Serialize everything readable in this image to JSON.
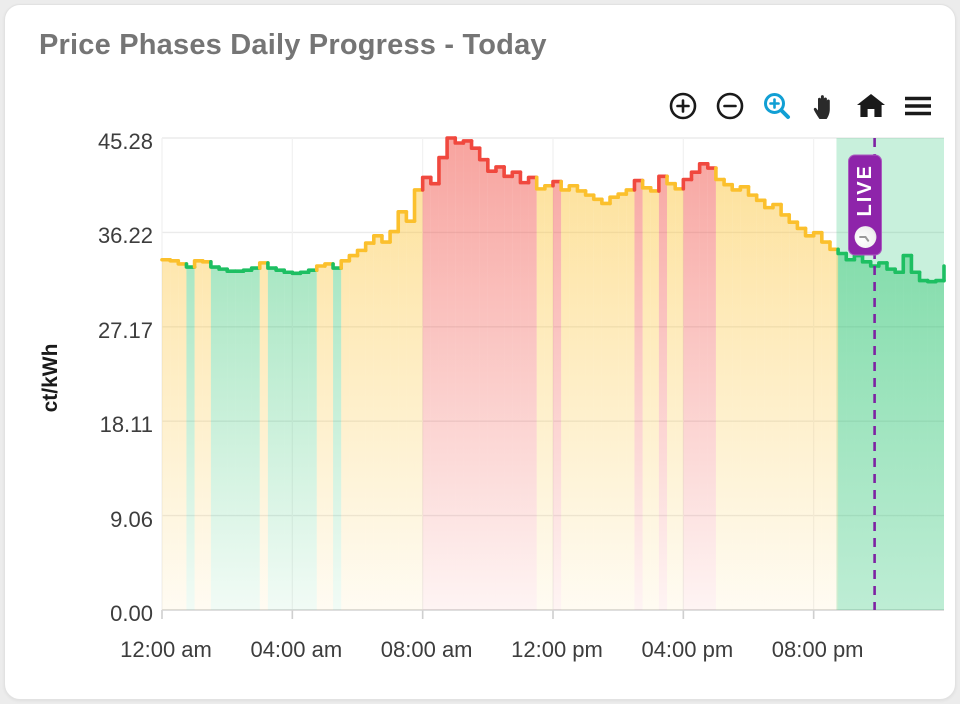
{
  "header": {
    "title": "Price Phases Daily Progress - Today"
  },
  "toolbar": {
    "icon_color": "#1a1a1a",
    "active_tool_color": "#119fd4",
    "buttons": [
      {
        "name": "zoom-in"
      },
      {
        "name": "zoom-out"
      },
      {
        "name": "box-zoom",
        "active": true
      },
      {
        "name": "pan"
      },
      {
        "name": "reset-home"
      },
      {
        "name": "menu"
      }
    ]
  },
  "live_marker": {
    "label": "LIVE",
    "icon": "clock-icon",
    "badge_color": "#8e24aa",
    "line_color": "#7e22a3",
    "time_hour": 21.87
  },
  "chart_data": {
    "type": "line",
    "subtype": "step-phase-colored",
    "title": "Price Phases Daily Progress - Today",
    "xlabel": "",
    "ylabel": "ct/kWh",
    "ylim": [
      0,
      45.28
    ],
    "xlim_hours": [
      0,
      24
    ],
    "grid": true,
    "legend_position": "none",
    "yticks": [
      {
        "v": 45.28,
        "label": "45.28"
      },
      {
        "v": 36.22,
        "label": "36.22"
      },
      {
        "v": 27.17,
        "label": "27.17"
      },
      {
        "v": 18.11,
        "label": "18.11"
      },
      {
        "v": 9.06,
        "label": "9.06"
      },
      {
        "v": 0.0,
        "label": "0.00"
      }
    ],
    "xticks": [
      {
        "h": 0,
        "label": "12:00 am"
      },
      {
        "h": 4,
        "label": "04:00 am"
      },
      {
        "h": 8,
        "label": "08:00 am"
      },
      {
        "h": 12,
        "label": "12:00 pm"
      },
      {
        "h": 16,
        "label": "04:00 pm"
      },
      {
        "h": 20,
        "label": "08:00 pm"
      }
    ],
    "phase_colors": {
      "G": "#1dbf62",
      "Y": "#fbc02d",
      "R": "#f0483e"
    },
    "current_phase_band": {
      "start_hour": 20.7,
      "end_hour": 24,
      "color": "#35c77f",
      "opacity": 0.27
    },
    "end_value": 33.0,
    "series": [
      {
        "t": "00:00",
        "v": 33.6,
        "p": "Y"
      },
      {
        "t": "00:15",
        "v": 33.5,
        "p": "Y"
      },
      {
        "t": "00:30",
        "v": 33.2,
        "p": "Y"
      },
      {
        "t": "00:45",
        "v": 32.9,
        "p": "G"
      },
      {
        "t": "01:00",
        "v": 33.5,
        "p": "Y"
      },
      {
        "t": "01:15",
        "v": 33.4,
        "p": "Y"
      },
      {
        "t": "01:30",
        "v": 32.9,
        "p": "G"
      },
      {
        "t": "01:45",
        "v": 32.7,
        "p": "G"
      },
      {
        "t": "02:00",
        "v": 32.5,
        "p": "G"
      },
      {
        "t": "02:15",
        "v": 32.5,
        "p": "G"
      },
      {
        "t": "02:30",
        "v": 32.6,
        "p": "G"
      },
      {
        "t": "02:45",
        "v": 32.8,
        "p": "G"
      },
      {
        "t": "03:00",
        "v": 33.3,
        "p": "Y"
      },
      {
        "t": "03:15",
        "v": 32.8,
        "p": "G"
      },
      {
        "t": "03:30",
        "v": 32.6,
        "p": "G"
      },
      {
        "t": "03:45",
        "v": 32.4,
        "p": "G"
      },
      {
        "t": "04:00",
        "v": 32.3,
        "p": "G"
      },
      {
        "t": "04:15",
        "v": 32.4,
        "p": "G"
      },
      {
        "t": "04:30",
        "v": 32.6,
        "p": "G"
      },
      {
        "t": "04:45",
        "v": 33.0,
        "p": "Y"
      },
      {
        "t": "05:00",
        "v": 33.2,
        "p": "Y"
      },
      {
        "t": "05:15",
        "v": 32.8,
        "p": "G"
      },
      {
        "t": "05:30",
        "v": 33.5,
        "p": "Y"
      },
      {
        "t": "05:45",
        "v": 34.0,
        "p": "Y"
      },
      {
        "t": "06:00",
        "v": 34.5,
        "p": "Y"
      },
      {
        "t": "06:15",
        "v": 35.2,
        "p": "Y"
      },
      {
        "t": "06:30",
        "v": 35.9,
        "p": "Y"
      },
      {
        "t": "06:45",
        "v": 35.3,
        "p": "Y"
      },
      {
        "t": "07:00",
        "v": 36.3,
        "p": "Y"
      },
      {
        "t": "07:15",
        "v": 38.2,
        "p": "Y"
      },
      {
        "t": "07:30",
        "v": 37.3,
        "p": "Y"
      },
      {
        "t": "07:45",
        "v": 40.3,
        "p": "Y"
      },
      {
        "t": "08:00",
        "v": 41.5,
        "p": "R"
      },
      {
        "t": "08:15",
        "v": 40.9,
        "p": "R"
      },
      {
        "t": "08:30",
        "v": 43.4,
        "p": "R"
      },
      {
        "t": "08:45",
        "v": 45.28,
        "p": "R"
      },
      {
        "t": "09:00",
        "v": 44.8,
        "p": "R"
      },
      {
        "t": "09:15",
        "v": 45.0,
        "p": "R"
      },
      {
        "t": "09:30",
        "v": 44.3,
        "p": "R"
      },
      {
        "t": "09:45",
        "v": 43.2,
        "p": "R"
      },
      {
        "t": "10:00",
        "v": 42.1,
        "p": "R"
      },
      {
        "t": "10:15",
        "v": 42.5,
        "p": "R"
      },
      {
        "t": "10:30",
        "v": 41.6,
        "p": "R"
      },
      {
        "t": "10:45",
        "v": 42.0,
        "p": "R"
      },
      {
        "t": "11:00",
        "v": 41.0,
        "p": "R"
      },
      {
        "t": "11:15",
        "v": 41.5,
        "p": "R"
      },
      {
        "t": "11:30",
        "v": 40.4,
        "p": "Y"
      },
      {
        "t": "11:45",
        "v": 40.7,
        "p": "Y"
      },
      {
        "t": "12:00",
        "v": 41.1,
        "p": "R"
      },
      {
        "t": "12:15",
        "v": 40.3,
        "p": "Y"
      },
      {
        "t": "12:30",
        "v": 40.7,
        "p": "Y"
      },
      {
        "t": "12:45",
        "v": 40.2,
        "p": "Y"
      },
      {
        "t": "13:00",
        "v": 39.8,
        "p": "Y"
      },
      {
        "t": "13:15",
        "v": 39.4,
        "p": "Y"
      },
      {
        "t": "13:30",
        "v": 39.0,
        "p": "Y"
      },
      {
        "t": "13:45",
        "v": 39.6,
        "p": "Y"
      },
      {
        "t": "14:00",
        "v": 39.9,
        "p": "Y"
      },
      {
        "t": "14:15",
        "v": 40.3,
        "p": "Y"
      },
      {
        "t": "14:30",
        "v": 41.2,
        "p": "R"
      },
      {
        "t": "14:45",
        "v": 40.5,
        "p": "Y"
      },
      {
        "t": "15:00",
        "v": 40.2,
        "p": "Y"
      },
      {
        "t": "15:15",
        "v": 41.6,
        "p": "R"
      },
      {
        "t": "15:30",
        "v": 40.9,
        "p": "Y"
      },
      {
        "t": "15:45",
        "v": 40.4,
        "p": "Y"
      },
      {
        "t": "16:00",
        "v": 41.3,
        "p": "R"
      },
      {
        "t": "16:15",
        "v": 42.0,
        "p": "R"
      },
      {
        "t": "16:30",
        "v": 42.8,
        "p": "R"
      },
      {
        "t": "16:45",
        "v": 42.4,
        "p": "R"
      },
      {
        "t": "17:00",
        "v": 41.3,
        "p": "Y"
      },
      {
        "t": "17:15",
        "v": 40.8,
        "p": "Y"
      },
      {
        "t": "17:30",
        "v": 40.3,
        "p": "Y"
      },
      {
        "t": "17:45",
        "v": 40.6,
        "p": "Y"
      },
      {
        "t": "18:00",
        "v": 39.8,
        "p": "Y"
      },
      {
        "t": "18:15",
        "v": 39.3,
        "p": "Y"
      },
      {
        "t": "18:30",
        "v": 38.6,
        "p": "Y"
      },
      {
        "t": "18:45",
        "v": 38.9,
        "p": "Y"
      },
      {
        "t": "19:00",
        "v": 37.9,
        "p": "Y"
      },
      {
        "t": "19:15",
        "v": 37.2,
        "p": "Y"
      },
      {
        "t": "19:30",
        "v": 36.6,
        "p": "Y"
      },
      {
        "t": "19:45",
        "v": 35.9,
        "p": "Y"
      },
      {
        "t": "20:00",
        "v": 36.2,
        "p": "Y"
      },
      {
        "t": "20:15",
        "v": 35.3,
        "p": "Y"
      },
      {
        "t": "20:30",
        "v": 34.6,
        "p": "Y"
      },
      {
        "t": "20:45",
        "v": 34.2,
        "p": "G"
      },
      {
        "t": "21:00",
        "v": 33.6,
        "p": "G"
      },
      {
        "t": "21:15",
        "v": 34.0,
        "p": "G"
      },
      {
        "t": "21:30",
        "v": 33.4,
        "p": "G"
      },
      {
        "t": "21:45",
        "v": 33.0,
        "p": "G"
      },
      {
        "t": "22:00",
        "v": 33.3,
        "p": "G"
      },
      {
        "t": "22:15",
        "v": 32.7,
        "p": "G"
      },
      {
        "t": "22:30",
        "v": 32.4,
        "p": "G"
      },
      {
        "t": "22:45",
        "v": 34.0,
        "p": "G"
      },
      {
        "t": "23:00",
        "v": 32.4,
        "p": "G"
      },
      {
        "t": "23:15",
        "v": 31.6,
        "p": "G"
      },
      {
        "t": "23:30",
        "v": 31.5,
        "p": "G"
      },
      {
        "t": "23:45",
        "v": 31.6,
        "p": "G"
      }
    ]
  }
}
